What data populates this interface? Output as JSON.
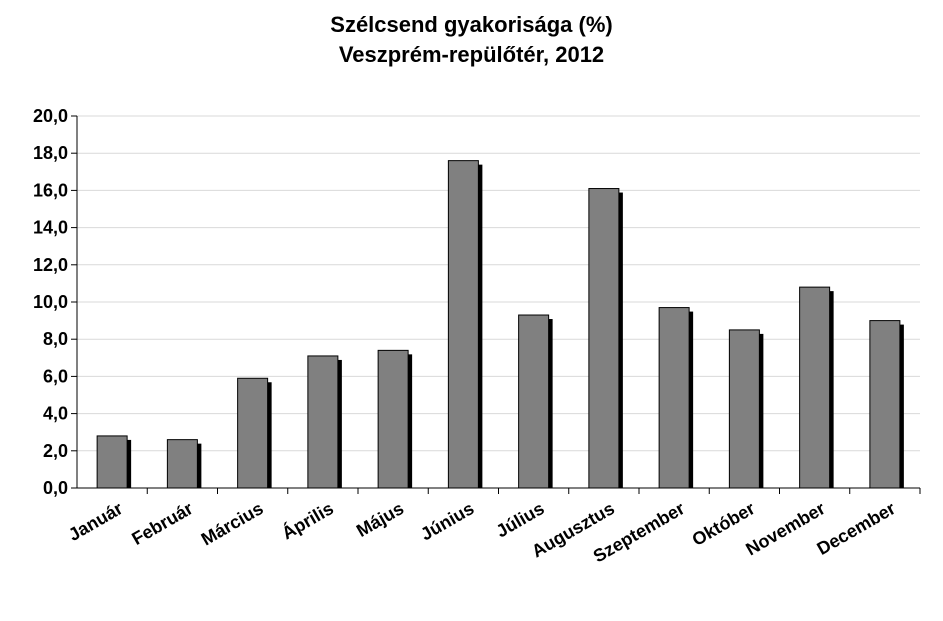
{
  "chart_data": {
    "type": "bar",
    "title": "Szélcsend gyakorisága (%)",
    "subtitle": "Veszprém-repülőtér, 2012",
    "categories": [
      "Január",
      "Február",
      "Március",
      "Április",
      "Május",
      "Június",
      "Július",
      "Augusztus",
      "Szeptember",
      "Október",
      "November",
      "December"
    ],
    "values": [
      2.8,
      2.6,
      5.9,
      7.1,
      7.4,
      17.6,
      9.3,
      16.1,
      9.7,
      8.5,
      10.8,
      9.0
    ],
    "ylim": [
      0,
      20
    ],
    "yticks": [
      "0,0",
      "2,0",
      "4,0",
      "6,0",
      "8,0",
      "10,0",
      "12,0",
      "14,0",
      "16,0",
      "18,0",
      "20,0"
    ],
    "xlabel": "",
    "ylabel": "",
    "grid": true,
    "legend": "none",
    "colors": {
      "bar": "#808080",
      "bar_shadow": "#000000",
      "grid": "#d9d9d9",
      "axis": "#000000"
    }
  }
}
